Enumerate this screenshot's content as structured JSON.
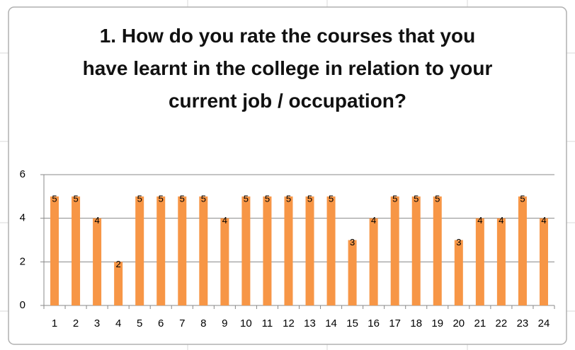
{
  "chart_data": {
    "type": "bar",
    "title": "1. How do you rate the courses that you have learnt in the college in relation to your current job / occupation?",
    "categories": [
      "1",
      "2",
      "3",
      "4",
      "5",
      "6",
      "7",
      "8",
      "9",
      "10",
      "11",
      "12",
      "13",
      "14",
      "15",
      "16",
      "17",
      "18",
      "19",
      "20",
      "21",
      "22",
      "23",
      "24"
    ],
    "values": [
      5,
      5,
      4,
      2,
      5,
      5,
      5,
      5,
      4,
      5,
      5,
      5,
      5,
      5,
      3,
      4,
      5,
      5,
      5,
      3,
      4,
      4,
      5,
      4
    ],
    "color": "#f79646",
    "ylim": [
      0,
      6
    ],
    "yticks": [
      0,
      2,
      4,
      6
    ],
    "grid": true
  }
}
